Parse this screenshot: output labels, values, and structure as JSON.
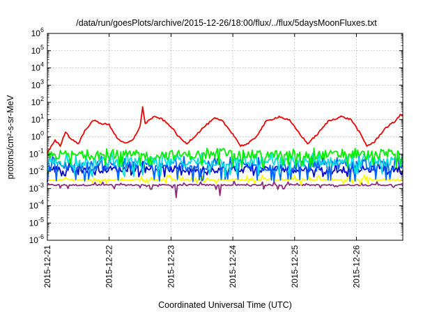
{
  "chart_data": {
    "type": "line",
    "title": "/data/run/goesPlots/archive/2015-12-26/18:00/flux/../flux/5daysMoonFluxes.txt",
    "xlabel": "Coordinated Universal Time (UTC)",
    "ylabel": "protons/cm²-s-sr-MeV",
    "y_scale": "log",
    "ylim": [
      1e-06,
      1000000.0
    ],
    "y_ticks": [
      {
        "base": "10",
        "exp": "-6",
        "value": 1e-06
      },
      {
        "base": "10",
        "exp": "-5",
        "value": 1e-05
      },
      {
        "base": "10",
        "exp": "-4",
        "value": 0.0001
      },
      {
        "base": "10",
        "exp": "-3",
        "value": 0.001
      },
      {
        "base": "10",
        "exp": "-2",
        "value": 0.01
      },
      {
        "base": "10",
        "exp": "-1",
        "value": 0.1
      },
      {
        "base": "10",
        "exp": "0",
        "value": 1
      },
      {
        "base": "10",
        "exp": "1",
        "value": 10
      },
      {
        "base": "10",
        "exp": "2",
        "value": 100
      },
      {
        "base": "10",
        "exp": "3",
        "value": 1000
      },
      {
        "base": "10",
        "exp": "4",
        "value": 10000
      },
      {
        "base": "10",
        "exp": "5",
        "value": 100000
      },
      {
        "base": "10",
        "exp": "6",
        "value": 1000000
      }
    ],
    "xlim": [
      "2015-12-21T00:00",
      "2015-12-26T18:00"
    ],
    "x_ticks": [
      "2015-12-21",
      "2015-12-22",
      "2015-12-23",
      "2015-12-24",
      "2015-12-25",
      "2015-12-26"
    ],
    "grid": true,
    "series": [
      {
        "color": "#ee0000",
        "noise": 0.1,
        "points": [
          [
            "2015-12-21T00:00",
            0.12
          ],
          [
            "2015-12-21T03:00",
            0.6
          ],
          [
            "2015-12-21T05:00",
            0.3
          ],
          [
            "2015-12-21T07:00",
            2.0
          ],
          [
            "2015-12-21T09:00",
            0.8
          ],
          [
            "2015-12-21T12:00",
            0.4
          ],
          [
            "2015-12-21T15:00",
            3.0
          ],
          [
            "2015-12-21T18:00",
            9.0
          ],
          [
            "2015-12-21T21:00",
            6.0
          ],
          [
            "2015-12-22T00:00",
            5.0
          ],
          [
            "2015-12-22T03:00",
            0.9
          ],
          [
            "2015-12-22T06:00",
            0.4
          ],
          [
            "2015-12-22T09:00",
            0.6
          ],
          [
            "2015-12-22T12:00",
            4.0
          ],
          [
            "2015-12-22T13:00",
            50.0
          ],
          [
            "2015-12-22T14:00",
            6.0
          ],
          [
            "2015-12-22T17:00",
            14.0
          ],
          [
            "2015-12-22T20:00",
            12.0
          ],
          [
            "2015-12-23T00:00",
            4.0
          ],
          [
            "2015-12-23T03:00",
            1.0
          ],
          [
            "2015-12-23T06:00",
            0.4
          ],
          [
            "2015-12-23T09:00",
            1.0
          ],
          [
            "2015-12-23T13:00",
            4.0
          ],
          [
            "2015-12-23T17:00",
            12.0
          ],
          [
            "2015-12-23T20:00",
            8.0
          ],
          [
            "2015-12-24T00:00",
            1.5
          ],
          [
            "2015-12-24T03:00",
            0.3
          ],
          [
            "2015-12-24T06:00",
            0.4
          ],
          [
            "2015-12-24T09:00",
            1.0
          ],
          [
            "2015-12-24T13:00",
            8.0
          ],
          [
            "2015-12-24T18:00",
            15.0
          ],
          [
            "2015-12-24T22:00",
            9.0
          ],
          [
            "2015-12-25T02:00",
            1.5
          ],
          [
            "2015-12-25T05:00",
            0.4
          ],
          [
            "2015-12-25T09:00",
            1.5
          ],
          [
            "2015-12-25T13:00",
            8.0
          ],
          [
            "2015-12-25T18:00",
            15.0
          ],
          [
            "2015-12-25T22:00",
            10.0
          ],
          [
            "2015-12-26T01:00",
            2.0
          ],
          [
            "2015-12-26T04:00",
            0.3
          ],
          [
            "2015-12-26T07:00",
            0.5
          ],
          [
            "2015-12-26T11:00",
            3.0
          ],
          [
            "2015-12-26T15:00",
            8.0
          ],
          [
            "2015-12-26T17:00",
            20.0
          ],
          [
            "2015-12-26T18:00",
            15.0
          ]
        ]
      },
      {
        "color": "#00ee00",
        "noise": 0.55,
        "level": 0.09,
        "spikes_hi": 0.18,
        "spikes_lo": 0.02
      },
      {
        "color": "#00dddd",
        "noise": 0.55,
        "level": 0.035,
        "spikes_hi": 0.1,
        "spikes_lo": 0.006
      },
      {
        "color": "#0066ff",
        "noise": 0.6,
        "level": 0.02,
        "spikes_hi": 0.06,
        "spikes_lo": 0.003
      },
      {
        "color": "#0000cc",
        "noise": 0.4,
        "level": 0.013,
        "spikes_hi": 0.03,
        "spikes_lo": 0.006
      },
      {
        "color": "#ffff00",
        "noise": 0.12,
        "level": 0.0032,
        "spikes_hi": 0.005,
        "spikes_lo": 0.002
      },
      {
        "color": "#8b2a7a",
        "noise": 0.08,
        "level": 0.0016,
        "spikes_hi": 0.0022,
        "spikes_lo": 0.0011,
        "dips": [
          [
            "2015-12-23T02:00",
            0.0003
          ],
          [
            "2015-12-23T19:00",
            0.0004
          ]
        ]
      }
    ]
  }
}
